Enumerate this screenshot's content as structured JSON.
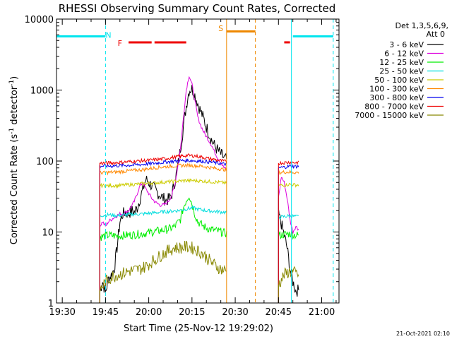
{
  "chart_data": {
    "type": "line",
    "title": "RHESSI Observing Summary Count Rates, Corrected",
    "xlabel": "Start Time (25-Nov-12 19:29:02)",
    "ylabel": "Corrected Count Rate (s⁻¹ detector⁻¹)",
    "ylabel_main": "Corrected Count Rate (s",
    "ylabel_sup1": "-1",
    "ylabel_mid": " detector",
    "ylabel_sup2": "-1",
    "ylabel_end": ")",
    "yscale": "log",
    "ylim": [
      1,
      10000
    ],
    "xlim_minutes": [
      -2,
      96
    ],
    "x_ticks": [
      "19:30",
      "19:45",
      "20:00",
      "20:15",
      "20:30",
      "20:45",
      "21:00"
    ],
    "x_tick_minutes": [
      0,
      15,
      30,
      45,
      60,
      75,
      90
    ],
    "y_ticks": [
      "1",
      "10",
      "100",
      "1000",
      "10000"
    ],
    "y_tick_values": [
      1,
      10,
      100,
      1000,
      10000
    ],
    "legend_header": [
      "Det 1,3,5,6,9,",
      "Att 0"
    ],
    "legend_position": "right",
    "series": [
      {
        "name": "3 - 6 keV",
        "color": "#000000",
        "points": [
          [
            13,
            1.5
          ],
          [
            14,
            2
          ],
          [
            15,
            1.4
          ],
          [
            16,
            2.2
          ],
          [
            17,
            2.5
          ],
          [
            18,
            3
          ],
          [
            19,
            6
          ],
          [
            20,
            14
          ],
          [
            21,
            18
          ],
          [
            22,
            19
          ],
          [
            23,
            18
          ],
          [
            24,
            20
          ],
          [
            25,
            19
          ],
          [
            26,
            22
          ],
          [
            27,
            30
          ],
          [
            28,
            40
          ],
          [
            29,
            55
          ],
          [
            30,
            50
          ],
          [
            31,
            45
          ],
          [
            32,
            40
          ],
          [
            33,
            36
          ],
          [
            34,
            33
          ],
          [
            35,
            30
          ],
          [
            36,
            28
          ],
          [
            37,
            29
          ],
          [
            38,
            34
          ],
          [
            39,
            50
          ],
          [
            40,
            80
          ],
          [
            41,
            150
          ],
          [
            42,
            300
          ],
          [
            43,
            600
          ],
          [
            44,
            1000
          ],
          [
            45,
            1050
          ],
          [
            46,
            850
          ],
          [
            47,
            650
          ],
          [
            48,
            500
          ],
          [
            49,
            400
          ],
          [
            50,
            300
          ],
          [
            51,
            240
          ],
          [
            52,
            190
          ],
          [
            53,
            160
          ],
          [
            54,
            140
          ],
          [
            55,
            125
          ],
          [
            56,
            112
          ],
          [
            57,
            105
          ]
        ],
        "points2": [
          [
            75,
            18
          ],
          [
            76,
            13
          ],
          [
            77,
            9
          ],
          [
            78,
            6
          ],
          [
            79,
            3
          ],
          [
            80,
            2
          ],
          [
            81,
            1.5
          ],
          [
            82,
            1.5
          ]
        ]
      },
      {
        "name": "6 - 12 keV",
        "color": "#dd00dd",
        "points": [
          [
            13,
            12
          ],
          [
            14,
            14
          ],
          [
            15,
            12
          ],
          [
            16,
            14
          ],
          [
            17,
            15
          ],
          [
            18,
            16
          ],
          [
            19,
            17
          ],
          [
            20,
            18
          ],
          [
            21,
            18
          ],
          [
            22,
            19
          ],
          [
            23,
            20
          ],
          [
            24,
            23
          ],
          [
            25,
            27
          ],
          [
            26,
            35
          ],
          [
            27,
            45
          ],
          [
            28,
            50
          ],
          [
            29,
            40
          ],
          [
            30,
            35
          ],
          [
            31,
            30
          ],
          [
            32,
            27
          ],
          [
            33,
            25
          ],
          [
            34,
            24
          ],
          [
            35,
            24
          ],
          [
            36,
            25
          ],
          [
            37,
            28
          ],
          [
            38,
            33
          ],
          [
            39,
            45
          ],
          [
            40,
            80
          ],
          [
            41,
            150
          ],
          [
            42,
            400
          ],
          [
            43,
            1000
          ],
          [
            44,
            1600
          ],
          [
            45,
            1200
          ],
          [
            46,
            700
          ],
          [
            47,
            420
          ],
          [
            48,
            320
          ],
          [
            49,
            260
          ],
          [
            50,
            220
          ],
          [
            51,
            190
          ],
          [
            52,
            160
          ],
          [
            53,
            130
          ],
          [
            54,
            110
          ],
          [
            55,
            95
          ],
          [
            56,
            82
          ],
          [
            57,
            75
          ]
        ],
        "points2": [
          [
            75,
            30
          ],
          [
            76,
            60
          ],
          [
            77,
            50
          ],
          [
            78,
            30
          ],
          [
            79,
            15
          ],
          [
            80,
            10
          ],
          [
            81,
            12
          ],
          [
            82,
            11
          ]
        ]
      },
      {
        "name": "12 - 25 keV",
        "color": "#00ee00",
        "points": [
          [
            13,
            8.5
          ],
          [
            16,
            9
          ],
          [
            19,
            8.8
          ],
          [
            22,
            9
          ],
          [
            25,
            9.2
          ],
          [
            28,
            9.5
          ],
          [
            31,
            10
          ],
          [
            34,
            10.5
          ],
          [
            37,
            11
          ],
          [
            39,
            12
          ],
          [
            41,
            15
          ],
          [
            42,
            22
          ],
          [
            43,
            28
          ],
          [
            44,
            33
          ],
          [
            45,
            25
          ],
          [
            46,
            18
          ],
          [
            47,
            14
          ],
          [
            49,
            12
          ],
          [
            51,
            11
          ],
          [
            53,
            10.5
          ],
          [
            55,
            10
          ],
          [
            57,
            9.5
          ]
        ],
        "points2": [
          [
            75,
            9
          ],
          [
            77,
            9.2
          ],
          [
            79,
            9.5
          ],
          [
            81,
            9
          ],
          [
            82,
            9
          ]
        ]
      },
      {
        "name": "25 - 50 keV",
        "color": "#00dddd",
        "points": [
          [
            13,
            17
          ],
          [
            16,
            17.5
          ],
          [
            19,
            17
          ],
          [
            22,
            17.5
          ],
          [
            25,
            17.8
          ],
          [
            28,
            18
          ],
          [
            31,
            18.5
          ],
          [
            34,
            19
          ],
          [
            37,
            19.5
          ],
          [
            40,
            20
          ],
          [
            43,
            21
          ],
          [
            45,
            22
          ],
          [
            47,
            21
          ],
          [
            50,
            20
          ],
          [
            53,
            19.5
          ],
          [
            56,
            19
          ],
          [
            57,
            19
          ]
        ],
        "points2": [
          [
            75,
            16
          ],
          [
            77,
            16.5
          ],
          [
            79,
            17
          ],
          [
            81,
            16.5
          ],
          [
            82,
            16.5
          ]
        ]
      },
      {
        "name": "50 - 100 keV",
        "color": "#cccc00",
        "points": [
          [
            13,
            45
          ],
          [
            16,
            45
          ],
          [
            19,
            45
          ],
          [
            22,
            46
          ],
          [
            25,
            47
          ],
          [
            28,
            48
          ],
          [
            31,
            49
          ],
          [
            34,
            50
          ],
          [
            37,
            51
          ],
          [
            40,
            52
          ],
          [
            43,
            53
          ],
          [
            46,
            53
          ],
          [
            49,
            52
          ],
          [
            52,
            51
          ],
          [
            55,
            50
          ],
          [
            57,
            49
          ]
        ],
        "points2": [
          [
            75,
            45
          ],
          [
            77,
            46
          ],
          [
            79,
            47
          ],
          [
            81,
            46
          ],
          [
            82,
            46
          ]
        ]
      },
      {
        "name": "100 - 300 keV",
        "color": "#ff8800",
        "points": [
          [
            13,
            68
          ],
          [
            16,
            69
          ],
          [
            19,
            70
          ],
          [
            22,
            72
          ],
          [
            25,
            74
          ],
          [
            28,
            76
          ],
          [
            31,
            79
          ],
          [
            34,
            82
          ],
          [
            37,
            84
          ],
          [
            40,
            86
          ],
          [
            43,
            87
          ],
          [
            46,
            86
          ],
          [
            49,
            84
          ],
          [
            52,
            80
          ],
          [
            55,
            77
          ],
          [
            57,
            75
          ]
        ],
        "points2": [
          [
            75,
            68
          ],
          [
            77,
            70
          ],
          [
            79,
            70
          ],
          [
            81,
            69
          ],
          [
            82,
            69
          ]
        ]
      },
      {
        "name": "300 - 800 keV",
        "color": "#0000ee",
        "points": [
          [
            13,
            85
          ],
          [
            16,
            85
          ],
          [
            19,
            86
          ],
          [
            22,
            87
          ],
          [
            25,
            88
          ],
          [
            28,
            90
          ],
          [
            31,
            92
          ],
          [
            34,
            95
          ],
          [
            37,
            98
          ],
          [
            40,
            100
          ],
          [
            43,
            102
          ],
          [
            46,
            101
          ],
          [
            49,
            99
          ],
          [
            52,
            96
          ],
          [
            55,
            92
          ],
          [
            57,
            90
          ]
        ],
        "points2": [
          [
            75,
            80
          ],
          [
            77,
            82
          ],
          [
            79,
            85
          ],
          [
            81,
            84
          ],
          [
            82,
            84
          ]
        ]
      },
      {
        "name": "800 - 7000 keV",
        "color": "#ee0000",
        "points": [
          [
            13,
            93
          ],
          [
            16,
            94
          ],
          [
            19,
            95
          ],
          [
            22,
            97
          ],
          [
            25,
            99
          ],
          [
            28,
            101
          ],
          [
            31,
            103
          ],
          [
            34,
            106
          ],
          [
            37,
            110
          ],
          [
            40,
            115
          ],
          [
            43,
            120
          ],
          [
            46,
            118
          ],
          [
            49,
            112
          ],
          [
            52,
            106
          ],
          [
            55,
            101
          ],
          [
            57,
            98
          ]
        ],
        "points2": [
          [
            75,
            93
          ],
          [
            77,
            95
          ],
          [
            79,
            96
          ],
          [
            81,
            95
          ],
          [
            82,
            95
          ]
        ]
      },
      {
        "name": "7000 - 15000 keV",
        "color": "#888800",
        "points": [
          [
            13,
            1.5
          ],
          [
            15,
            2
          ],
          [
            17,
            2.3
          ],
          [
            19,
            2.5
          ],
          [
            21,
            2.6
          ],
          [
            23,
            2.8
          ],
          [
            25,
            2.9
          ],
          [
            27,
            3
          ],
          [
            29,
            3.3
          ],
          [
            31,
            3.8
          ],
          [
            33,
            4.3
          ],
          [
            35,
            5
          ],
          [
            37,
            5.5
          ],
          [
            39,
            6
          ],
          [
            41,
            6
          ],
          [
            43,
            6.2
          ],
          [
            45,
            6
          ],
          [
            47,
            5.5
          ],
          [
            49,
            4.8
          ],
          [
            51,
            4
          ],
          [
            53,
            3.4
          ],
          [
            55,
            3
          ],
          [
            57,
            2.8
          ]
        ],
        "points2": [
          [
            75,
            1.8
          ],
          [
            77,
            2.5
          ],
          [
            79,
            2.8
          ],
          [
            81,
            2.6
          ],
          [
            82,
            2.5
          ]
        ]
      }
    ],
    "flags": {
      "segments": [
        {
          "color": "#00e5ee",
          "y": 5700,
          "ranges": [
            [
              -2,
              15
            ],
            [
              80,
              94
            ]
          ]
        },
        {
          "color": "#ee0000",
          "y": 4700,
          "ranges": [
            [
              23,
              31
            ],
            [
              32,
              43
            ]
          ]
        },
        {
          "color": "#ee8800",
          "y": 6700,
          "ranges": [
            [
              57,
              67
            ]
          ]
        },
        {
          "color": "#ee0000",
          "y": 4700,
          "ranges": [
            [
              77,
              79
            ]
          ]
        }
      ],
      "letters": [
        {
          "text": "N",
          "color": "#00e5ee",
          "x": 16,
          "y": 6000
        },
        {
          "text": "F",
          "color": "#ee0000",
          "x": 20,
          "y": 4600
        },
        {
          "text": "S",
          "color": "#ee8800",
          "x": 55,
          "y": 7400
        }
      ],
      "vlines": [
        {
          "color": "#00e5ee",
          "x": -2,
          "dashed": false
        },
        {
          "color": "#00e5ee",
          "x": 15,
          "dashed": true
        },
        {
          "color": "#ee8800",
          "x": 57,
          "dashed": false
        },
        {
          "color": "#ee8800",
          "x": 67,
          "dashed": true
        },
        {
          "color": "#00e5ee",
          "x": 79.5,
          "dashed": false
        },
        {
          "color": "#00e5ee",
          "x": 94,
          "dashed": true
        }
      ]
    }
  },
  "footer": {
    "timestamp": "21-Oct-2021 02:10"
  }
}
